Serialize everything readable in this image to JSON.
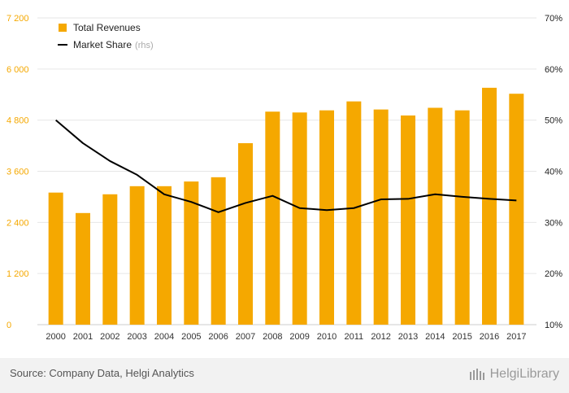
{
  "chart_data": {
    "type": "bar",
    "categories": [
      "2000",
      "2001",
      "2002",
      "2003",
      "2004",
      "2005",
      "2006",
      "2007",
      "2008",
      "2009",
      "2010",
      "2011",
      "2012",
      "2013",
      "2014",
      "2015",
      "2016",
      "2017"
    ],
    "series": [
      {
        "name": "Total Revenues",
        "type": "bar",
        "axis": "left",
        "color": "#f5a800",
        "values": [
          3100,
          2620,
          3060,
          3250,
          3250,
          3360,
          3460,
          4260,
          5000,
          4980,
          5030,
          5240,
          5050,
          4910,
          5090,
          5030,
          5560,
          5420
        ]
      },
      {
        "name": "Market Share",
        "type": "line",
        "axis": "right",
        "color": "#000000",
        "values": [
          50.0,
          45.5,
          42.0,
          39.3,
          35.5,
          34.0,
          32.0,
          33.8,
          35.2,
          32.8,
          32.4,
          32.8,
          34.5,
          34.6,
          35.5,
          35.0,
          34.6,
          34.3
        ]
      }
    ],
    "left_axis": {
      "ticks": [
        "0",
        "1 200",
        "2 400",
        "3 600",
        "4 800",
        "6 000",
        "7 200"
      ],
      "min": 0,
      "max": 7200
    },
    "right_axis": {
      "ticks": [
        "10%",
        "20%",
        "30%",
        "40%",
        "50%",
        "60%",
        "70%"
      ],
      "min": 10,
      "max": 70
    },
    "legend": {
      "position": "top-left",
      "entries": [
        {
          "label": "Total Revenues",
          "suffix": ""
        },
        {
          "label": "Market Share",
          "suffix": "(rhs)"
        }
      ]
    },
    "grid": "horizontal"
  },
  "footer": {
    "source": "Source: Company Data, Helgi Analytics",
    "brand": "HelgiLibrary"
  }
}
